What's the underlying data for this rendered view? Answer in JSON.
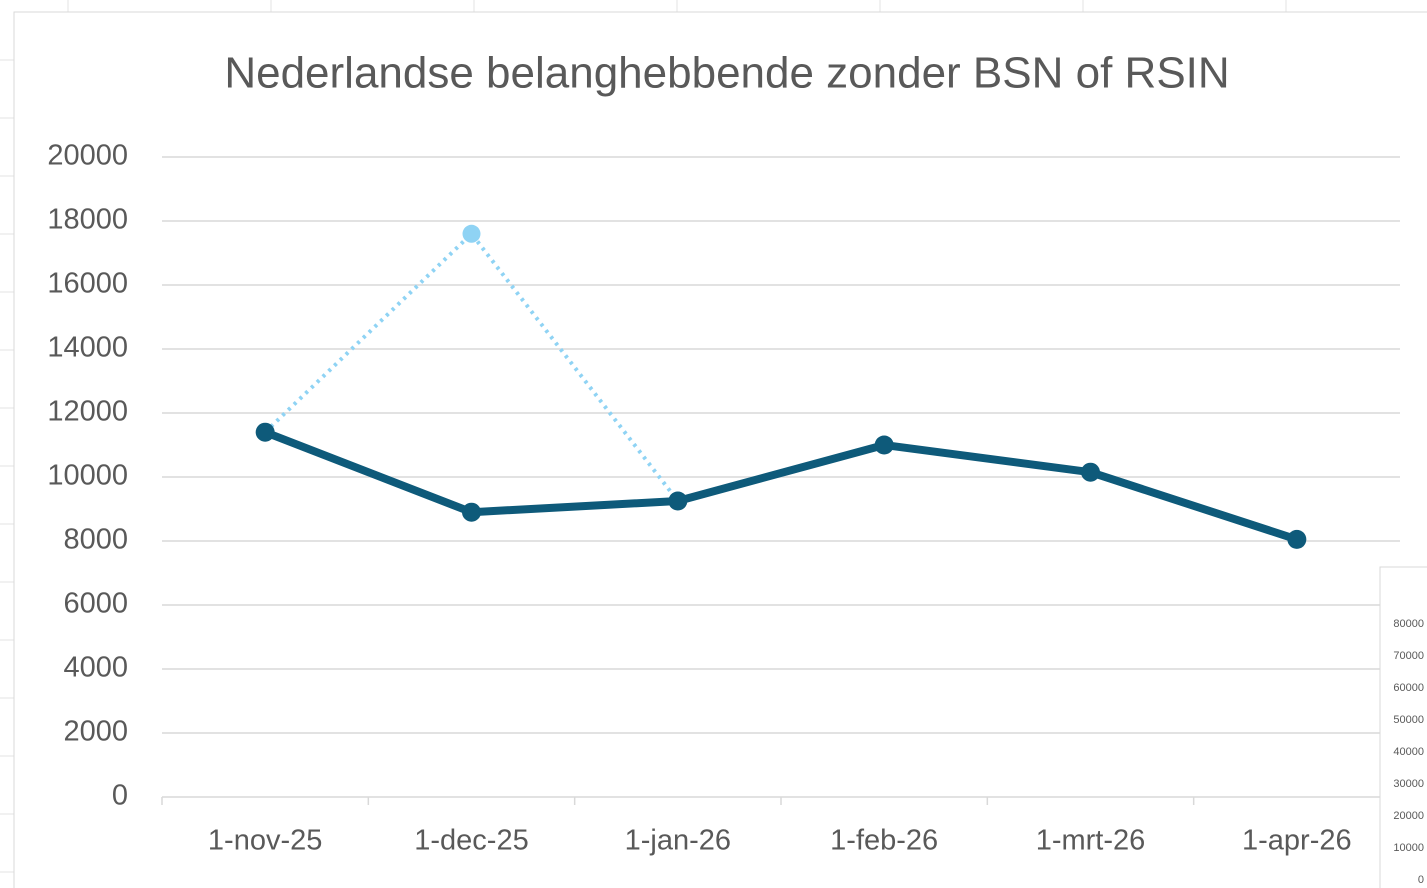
{
  "chart_data": [
    {
      "type": "line",
      "title": "Nederlandse belanghebbende zonder BSN of RSIN",
      "categories": [
        "1-nov-25",
        "1-dec-25",
        "1-jan-26",
        "1-feb-26",
        "1-mrt-26",
        "1-apr-26"
      ],
      "series": [
        {
          "color": "#8fd3f4",
          "line_style": "dotted",
          "values": [
            11400,
            17600,
            9250,
            null,
            null,
            null
          ]
        },
        {
          "color": "#0e5a7a",
          "line_style": "solid",
          "values": [
            11400,
            8900,
            9250,
            11000,
            10150,
            8050
          ]
        }
      ],
      "ylim": [
        0,
        20000
      ],
      "yticks": [
        0,
        2000,
        4000,
        6000,
        8000,
        10000,
        12000,
        14000,
        16000,
        18000,
        20000
      ],
      "grid": true
    },
    {
      "type": "line",
      "ylim": [
        0,
        80000
      ],
      "yticks": [
        0,
        10000,
        20000,
        30000,
        40000,
        50000,
        60000,
        70000,
        80000
      ]
    }
  ]
}
